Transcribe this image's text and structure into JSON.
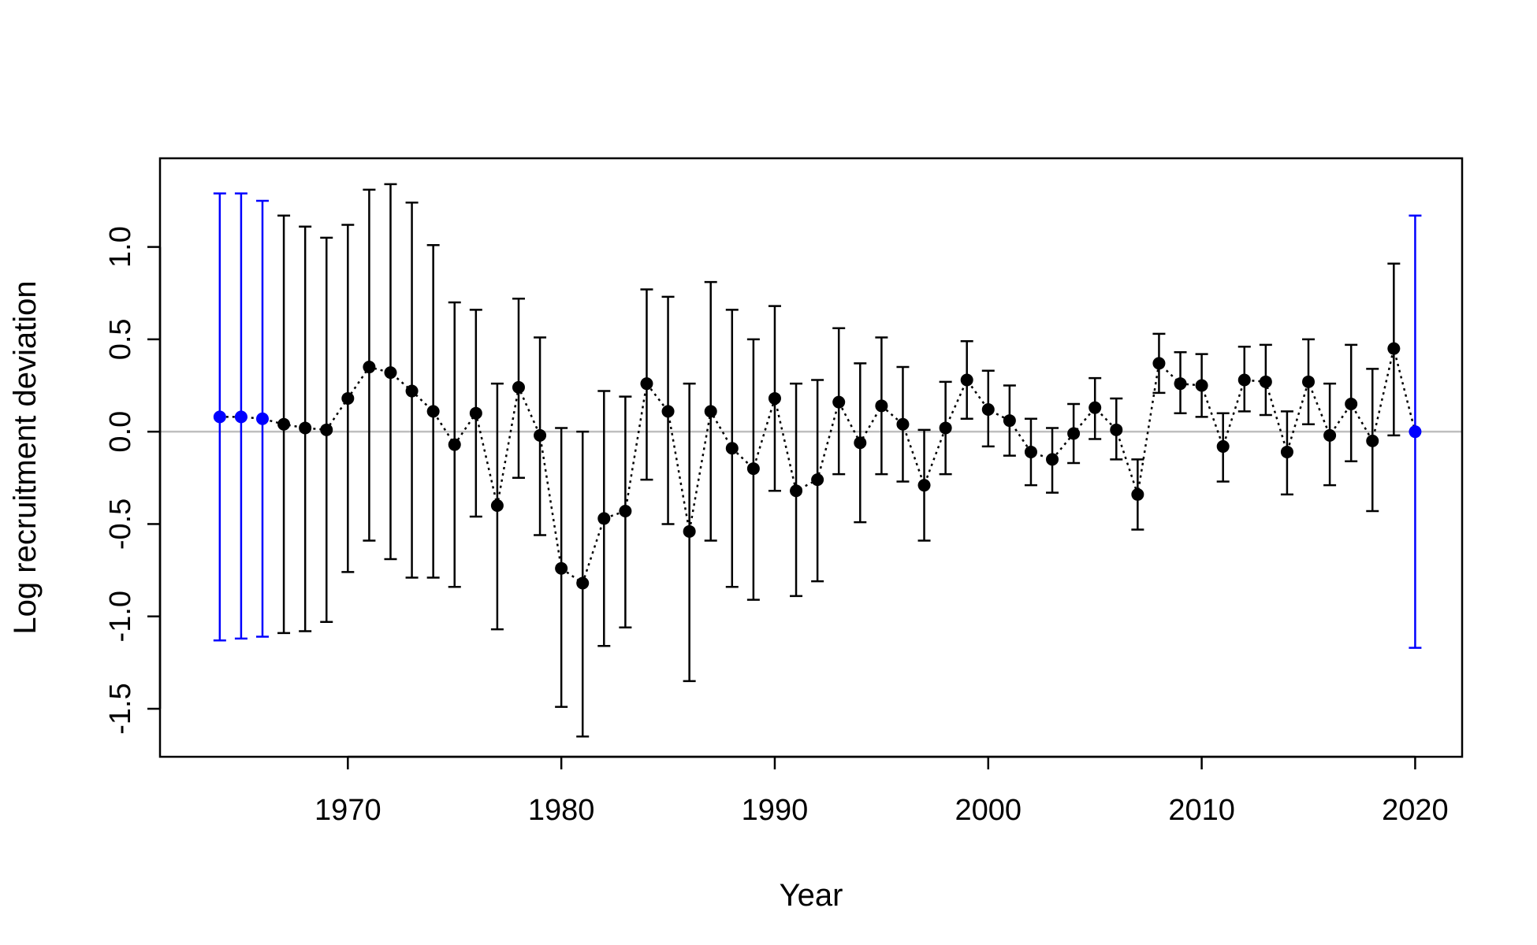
{
  "chart_data": {
    "type": "scatter",
    "xlabel": "Year",
    "ylabel": "Log recruitment deviation",
    "xlim": [
      1961.2,
      2022.2
    ],
    "ylim": [
      -1.76,
      1.48
    ],
    "x_ticks": [
      1970,
      1980,
      1990,
      2000,
      2010,
      2020
    ],
    "x_tick_labels": [
      "1970",
      "1980",
      "1990",
      "2000",
      "2010",
      "2020"
    ],
    "y_ticks": [
      -1.5,
      -1.0,
      -0.5,
      0.0,
      0.5,
      1.0
    ],
    "y_tick_labels": [
      "-1.5",
      "-1.0",
      "-0.5",
      "0.0",
      "0.5",
      "1.0"
    ],
    "reference_line": {
      "y": 0,
      "color": "#bebebe"
    },
    "colors": {
      "main": "#000000",
      "highlight": "#0000ff"
    },
    "grid": false,
    "legend": "none",
    "series": [
      {
        "years": [
          1964,
          1965,
          1966,
          1967,
          1968,
          1969,
          1970,
          1971,
          1972,
          1973,
          1974,
          1975,
          1976,
          1977,
          1978,
          1979,
          1980,
          1981,
          1982,
          1983,
          1984,
          1985,
          1986,
          1987,
          1988,
          1989,
          1990,
          1991,
          1992,
          1993,
          1994,
          1995,
          1996,
          1997,
          1998,
          1999,
          2000,
          2001,
          2002,
          2003,
          2004,
          2005,
          2006,
          2007,
          2008,
          2009,
          2010,
          2011,
          2012,
          2013,
          2014,
          2015,
          2016,
          2017,
          2018,
          2019,
          2020
        ],
        "values": [
          0.08,
          0.08,
          0.07,
          0.04,
          0.02,
          0.01,
          0.18,
          0.35,
          0.32,
          0.22,
          0.11,
          -0.07,
          0.1,
          -0.4,
          0.24,
          -0.02,
          -0.74,
          -0.82,
          -0.47,
          -0.43,
          0.26,
          0.11,
          -0.54,
          0.11,
          -0.09,
          -0.2,
          0.18,
          -0.32,
          -0.26,
          0.16,
          -0.06,
          0.14,
          0.04,
          -0.29,
          0.02,
          0.28,
          0.12,
          0.06,
          -0.11,
          -0.15,
          -0.01,
          0.13,
          0.01,
          -0.34,
          0.37,
          0.26,
          0.25,
          -0.08,
          0.28,
          0.27,
          -0.11,
          0.27,
          -0.02,
          0.15,
          -0.05,
          0.45,
          0.0
        ],
        "lower": [
          -1.13,
          -1.12,
          -1.11,
          -1.09,
          -1.08,
          -1.03,
          -0.76,
          -0.59,
          -0.69,
          -0.79,
          -0.79,
          -0.84,
          -0.46,
          -1.07,
          -0.25,
          -0.56,
          -1.49,
          -1.65,
          -1.16,
          -1.06,
          -0.26,
          -0.5,
          -1.35,
          -0.59,
          -0.84,
          -0.91,
          -0.32,
          -0.89,
          -0.81,
          -0.23,
          -0.49,
          -0.23,
          -0.27,
          -0.59,
          -0.23,
          0.07,
          -0.08,
          -0.13,
          -0.29,
          -0.33,
          -0.17,
          -0.04,
          -0.15,
          -0.53,
          0.21,
          0.1,
          0.08,
          -0.27,
          0.11,
          0.09,
          -0.34,
          0.04,
          -0.29,
          -0.16,
          -0.43,
          -0.02,
          -1.17
        ],
        "upper": [
          1.29,
          1.29,
          1.25,
          1.17,
          1.11,
          1.05,
          1.12,
          1.31,
          1.34,
          1.24,
          1.01,
          0.7,
          0.66,
          0.26,
          0.72,
          0.51,
          0.02,
          0.0,
          0.22,
          0.19,
          0.77,
          0.73,
          0.26,
          0.81,
          0.66,
          0.5,
          0.68,
          0.26,
          0.28,
          0.56,
          0.37,
          0.51,
          0.35,
          0.01,
          0.27,
          0.49,
          0.33,
          0.25,
          0.07,
          0.02,
          0.15,
          0.29,
          0.18,
          -0.15,
          0.53,
          0.43,
          0.42,
          0.1,
          0.46,
          0.47,
          0.11,
          0.5,
          0.26,
          0.47,
          0.34,
          0.91,
          1.17
        ],
        "highlight_years": [
          1964,
          1965,
          1966,
          2020
        ]
      }
    ]
  }
}
